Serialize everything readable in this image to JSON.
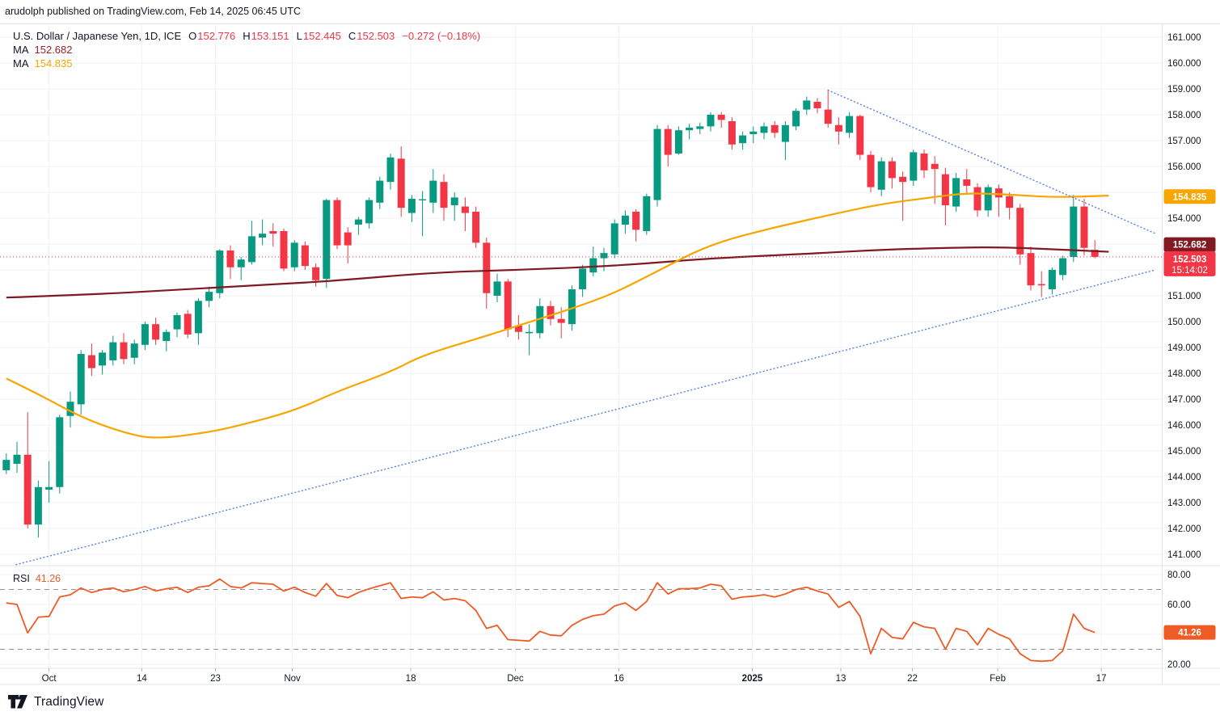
{
  "attribution": "arudolph published on TradingView.com, Feb 14, 2025 06:45 UTC",
  "legend": {
    "symbol": "U.S. Dollar / Japanese Yen, 1D, ICE",
    "o_label": "O",
    "o": "152.776",
    "h_label": "H",
    "h": "153.151",
    "l_label": "L",
    "l": "152.445",
    "c_label": "C",
    "c": "152.503",
    "change": "−0.272 (−0.18%)",
    "ma1_label": "MA",
    "ma1_value": "152.682",
    "ma2_label": "MA",
    "ma2_value": "154.835"
  },
  "rsi_legend": {
    "label": "RSI",
    "value": "41.26"
  },
  "footer": {
    "logo_text": "TradingView"
  },
  "colors": {
    "up": "#089981",
    "down": "#f23645",
    "ma1": "#801922",
    "ma2": "#f7a600",
    "rsi": "#ef5b24",
    "trend": "#5b87e5",
    "grid": "#f0f3fa",
    "axis_text": "#131722",
    "separator": "#e0e3eb",
    "price_line": "#f23645",
    "rsi_level": "#8f939e",
    "tag_text": "#ffffff"
  },
  "chart_data": {
    "type": "candlestick",
    "title": "U.S. Dollar / Japanese Yen, 1D, ICE",
    "price_range": [
      140.56,
      161.5
    ],
    "rsi_range": [
      17.3,
      85.95
    ],
    "grid": true,
    "candles": [
      [
        144.25,
        144.9,
        144.1,
        144.65
      ],
      [
        144.5,
        145.35,
        144.15,
        144.85
      ],
      [
        144.85,
        146.5,
        142.0,
        142.15
      ],
      [
        142.15,
        143.85,
        141.65,
        143.6
      ],
      [
        143.5,
        144.6,
        143.0,
        143.6
      ],
      [
        143.6,
        146.4,
        143.35,
        146.3
      ],
      [
        146.35,
        147.3,
        145.9,
        146.9
      ],
      [
        146.8,
        148.9,
        146.4,
        148.75
      ],
      [
        148.7,
        149.15,
        147.9,
        148.2
      ],
      [
        148.3,
        148.9,
        147.95,
        148.8
      ],
      [
        148.5,
        149.45,
        148.3,
        149.2
      ],
      [
        149.2,
        149.55,
        148.35,
        148.55
      ],
      [
        148.6,
        149.3,
        148.35,
        149.15
      ],
      [
        149.1,
        150.0,
        148.9,
        149.9
      ],
      [
        149.9,
        150.15,
        149.1,
        149.3
      ],
      [
        149.25,
        149.7,
        148.85,
        149.6
      ],
      [
        149.7,
        150.35,
        149.4,
        150.25
      ],
      [
        150.3,
        150.45,
        149.35,
        149.5
      ],
      [
        149.55,
        150.9,
        149.1,
        150.8
      ],
      [
        150.8,
        151.35,
        150.55,
        151.15
      ],
      [
        151.1,
        152.8,
        150.9,
        152.75
      ],
      [
        152.75,
        152.95,
        151.65,
        152.1
      ],
      [
        152.1,
        152.5,
        151.6,
        152.4
      ],
      [
        152.3,
        153.9,
        152.2,
        153.3
      ],
      [
        153.25,
        153.95,
        152.95,
        153.4
      ],
      [
        153.5,
        153.8,
        152.9,
        153.4
      ],
      [
        153.5,
        153.6,
        151.95,
        152.05
      ],
      [
        152.1,
        153.15,
        151.95,
        153.05
      ],
      [
        152.95,
        153.1,
        152.0,
        152.15
      ],
      [
        152.1,
        152.25,
        151.35,
        151.6
      ],
      [
        151.65,
        154.75,
        151.3,
        154.7
      ],
      [
        154.7,
        154.8,
        152.8,
        152.95
      ],
      [
        153.45,
        153.65,
        152.25,
        152.95
      ],
      [
        153.75,
        154.05,
        153.35,
        153.95
      ],
      [
        153.8,
        154.8,
        153.6,
        154.7
      ],
      [
        154.6,
        155.6,
        154.35,
        155.45
      ],
      [
        155.4,
        156.5,
        155.1,
        156.35
      ],
      [
        156.3,
        156.78,
        154.05,
        154.4
      ],
      [
        154.2,
        154.9,
        153.85,
        154.75
      ],
      [
        154.7,
        155.05,
        153.3,
        154.72
      ],
      [
        154.6,
        155.9,
        154.2,
        155.45
      ],
      [
        155.4,
        155.7,
        153.9,
        154.4
      ],
      [
        154.5,
        155.0,
        153.9,
        154.8
      ],
      [
        154.45,
        154.8,
        153.5,
        154.2
      ],
      [
        154.25,
        154.45,
        152.85,
        153.05
      ],
      [
        153.05,
        153.25,
        150.5,
        151.1
      ],
      [
        151.0,
        151.85,
        150.75,
        151.55
      ],
      [
        151.55,
        151.65,
        149.4,
        149.7
      ],
      [
        149.85,
        150.25,
        149.3,
        149.6
      ],
      [
        149.55,
        149.9,
        148.7,
        149.6
      ],
      [
        149.55,
        150.9,
        149.35,
        150.6
      ],
      [
        150.6,
        150.8,
        149.85,
        150.1
      ],
      [
        150.1,
        150.55,
        149.35,
        149.95
      ],
      [
        149.9,
        151.4,
        149.65,
        151.25
      ],
      [
        151.25,
        152.2,
        150.95,
        152.05
      ],
      [
        151.9,
        152.9,
        151.75,
        152.45
      ],
      [
        152.45,
        152.85,
        151.95,
        152.65
      ],
      [
        152.6,
        153.95,
        152.45,
        153.8
      ],
      [
        153.75,
        154.3,
        153.4,
        154.1
      ],
      [
        154.25,
        154.35,
        153.1,
        153.55
      ],
      [
        153.5,
        154.95,
        153.35,
        154.85
      ],
      [
        154.7,
        157.6,
        154.45,
        157.45
      ],
      [
        157.45,
        157.6,
        156.0,
        156.45
      ],
      [
        156.5,
        157.55,
        156.45,
        157.4
      ],
      [
        157.4,
        157.65,
        157.05,
        157.5
      ],
      [
        157.45,
        157.7,
        157.25,
        157.55
      ],
      [
        157.55,
        158.1,
        157.35,
        158.0
      ],
      [
        158.0,
        158.1,
        157.5,
        157.8
      ],
      [
        157.75,
        157.9,
        156.65,
        156.85
      ],
      [
        156.9,
        157.35,
        156.65,
        157.2
      ],
      [
        157.25,
        157.55,
        156.9,
        157.35
      ],
      [
        157.3,
        157.7,
        157.05,
        157.55
      ],
      [
        157.6,
        157.75,
        157.1,
        157.3
      ],
      [
        156.95,
        157.75,
        156.25,
        157.6
      ],
      [
        157.55,
        158.25,
        157.4,
        158.15
      ],
      [
        158.2,
        158.7,
        158.0,
        158.55
      ],
      [
        158.5,
        158.65,
        158.05,
        158.25
      ],
      [
        158.2,
        158.95,
        157.5,
        157.65
      ],
      [
        157.6,
        157.9,
        156.85,
        157.35
      ],
      [
        157.3,
        158.1,
        157.1,
        157.95
      ],
      [
        157.95,
        158.0,
        156.25,
        156.45
      ],
      [
        156.45,
        156.6,
        155.0,
        155.2
      ],
      [
        155.1,
        156.35,
        154.85,
        156.2
      ],
      [
        156.2,
        156.35,
        155.15,
        155.55
      ],
      [
        155.6,
        155.8,
        153.9,
        155.4
      ],
      [
        155.45,
        156.65,
        155.25,
        156.55
      ],
      [
        156.5,
        156.65,
        155.55,
        155.85
      ],
      [
        156.1,
        156.4,
        154.55,
        155.9
      ],
      [
        155.7,
        155.95,
        153.72,
        154.5
      ],
      [
        154.45,
        155.75,
        154.25,
        155.55
      ],
      [
        155.5,
        155.9,
        154.9,
        155.25
      ],
      [
        155.2,
        155.35,
        154.05,
        154.3
      ],
      [
        154.3,
        155.3,
        154.05,
        155.2
      ],
      [
        155.15,
        155.3,
        154.05,
        154.8
      ],
      [
        154.85,
        155.0,
        153.95,
        154.4
      ],
      [
        154.4,
        154.55,
        152.2,
        152.6
      ],
      [
        152.65,
        152.9,
        151.2,
        151.4
      ],
      [
        151.45,
        151.95,
        150.95,
        151.4
      ],
      [
        151.25,
        152.1,
        151.05,
        152.0
      ],
      [
        151.8,
        152.55,
        151.6,
        152.45
      ],
      [
        152.5,
        154.9,
        152.3,
        154.45
      ],
      [
        154.45,
        154.75,
        152.55,
        152.85
      ],
      [
        152.776,
        153.151,
        152.445,
        152.503
      ]
    ],
    "ma1": {
      "name": "MA",
      "last": "152.682",
      "points": [
        [
          0,
          150.93
        ],
        [
          8,
          151.05
        ],
        [
          15,
          151.2
        ],
        [
          23,
          151.4
        ],
        [
          30,
          151.55
        ],
        [
          40,
          151.9
        ],
        [
          48,
          152.0
        ],
        [
          57,
          152.15
        ],
        [
          66,
          152.45
        ],
        [
          75,
          152.62
        ],
        [
          82,
          152.78
        ],
        [
          88,
          152.85
        ],
        [
          93,
          152.88
        ],
        [
          98,
          152.8
        ],
        [
          103.3,
          152.7
        ]
      ]
    },
    "ma2": {
      "name": "MA",
      "last": "154.835",
      "points": [
        [
          0,
          147.8
        ],
        [
          3,
          147.2
        ],
        [
          7,
          146.3
        ],
        [
          11,
          145.7
        ],
        [
          14,
          145.45
        ],
        [
          19,
          145.72
        ],
        [
          22,
          146.0
        ],
        [
          27,
          146.55
        ],
        [
          31,
          147.3
        ],
        [
          36,
          148.05
        ],
        [
          39,
          148.7
        ],
        [
          45,
          149.45
        ],
        [
          48,
          149.85
        ],
        [
          53,
          150.5
        ],
        [
          57,
          151.1
        ],
        [
          61,
          151.95
        ],
        [
          66,
          153.0
        ],
        [
          72,
          153.65
        ],
        [
          78,
          154.2
        ],
        [
          82,
          154.55
        ],
        [
          87,
          154.82
        ],
        [
          90,
          154.97
        ],
        [
          94,
          154.92
        ],
        [
          98,
          154.8
        ],
        [
          103.3,
          154.87
        ]
      ]
    },
    "rsi": {
      "name": "RSI",
      "last": 41.26,
      "levels_dashed": [
        70,
        30
      ],
      "grid_levels": [
        80,
        60,
        40,
        20
      ],
      "values": [
        61,
        60,
        41,
        51.5,
        52,
        65,
        66.5,
        71,
        68,
        70,
        71,
        68.5,
        70,
        72,
        69,
        70.5,
        71.5,
        68,
        71.5,
        72.5,
        77,
        72,
        71,
        74.5,
        74,
        73.5,
        69,
        71.5,
        68,
        65.5,
        74,
        66,
        64.5,
        68,
        70.5,
        72.5,
        74.5,
        64,
        65,
        64.5,
        68.5,
        63,
        64,
        62.5,
        56,
        44,
        46,
        36.5,
        36,
        35.5,
        42,
        39.5,
        39,
        46,
        50,
        52.5,
        53.5,
        59,
        61,
        56,
        62,
        74.5,
        67,
        70.5,
        70.5,
        71,
        73.5,
        72.5,
        63.5,
        65,
        65.5,
        66.5,
        65,
        67,
        70,
        71.5,
        69,
        67,
        58,
        62,
        52,
        27,
        44,
        38,
        37,
        48,
        45,
        44,
        30,
        44,
        42,
        33,
        44,
        40,
        37,
        27,
        22.5,
        22,
        22.5,
        29,
        53.5,
        44,
        41.26
      ]
    },
    "trendlines": [
      {
        "from_i": 0.92,
        "from_p": 140.6,
        "to_i": 107.7,
        "to_p": 152.0
      },
      {
        "from_i": 77,
        "from_p": 158.95,
        "to_i": 107.7,
        "to_p": 153.4
      }
    ],
    "price_line": 152.503,
    "price_axis_labels": [
      {
        "text": "161.000",
        "p": 161
      },
      {
        "text": "160.000",
        "p": 160
      },
      {
        "text": "159.000",
        "p": 159
      },
      {
        "text": "158.000",
        "p": 158
      },
      {
        "text": "157.000",
        "p": 157
      },
      {
        "text": "156.000",
        "p": 156
      },
      {
        "text": "154.000",
        "p": 154
      },
      {
        "text": "151.000",
        "p": 151
      },
      {
        "text": "150.000",
        "p": 150
      },
      {
        "text": "149.000",
        "p": 149
      },
      {
        "text": "148.000",
        "p": 148
      },
      {
        "text": "147.000",
        "p": 147
      },
      {
        "text": "146.000",
        "p": 146
      },
      {
        "text": "145.000",
        "p": 145
      },
      {
        "text": "144.000",
        "p": 144
      },
      {
        "text": "143.000",
        "p": 143
      },
      {
        "text": "142.000",
        "p": 142
      },
      {
        "text": "141.000",
        "p": 141
      }
    ],
    "rsi_axis_labels": [
      {
        "text": "80.00",
        "v": 80
      },
      {
        "text": "60.00",
        "v": 60
      },
      {
        "text": "20.00",
        "v": 20
      }
    ],
    "time_ticks": [
      {
        "label": "Oct",
        "i": 4.0
      },
      {
        "label": "14",
        "i": 12.7
      },
      {
        "label": "23",
        "i": 19.6
      },
      {
        "label": "Nov",
        "i": 26.8
      },
      {
        "label": "18",
        "i": 37.9
      },
      {
        "label": "Dec",
        "i": 47.7
      },
      {
        "label": "16",
        "i": 57.4
      },
      {
        "label": "2025",
        "i": 69.9,
        "bold": true
      },
      {
        "label": "13",
        "i": 78.2
      },
      {
        "label": "22",
        "i": 84.9
      },
      {
        "label": "Feb",
        "i": 92.9
      },
      {
        "label": "17",
        "i": 102.6
      }
    ],
    "tags": [
      {
        "kind": "ma2",
        "text": "154.835",
        "bg": "#f7a600",
        "p": 154.835,
        "dy": 0
      },
      {
        "kind": "ma1",
        "text": "152.682",
        "bg": "#801922",
        "p": 152.682,
        "dy": -9.5
      },
      {
        "kind": "price",
        "text": "152.503",
        "sub": "15:14:02",
        "bg": "#f23645",
        "p": 152.503
      },
      {
        "kind": "rsi",
        "text": "41.26",
        "bg": "#ef5b24",
        "v": 41.26
      }
    ]
  }
}
